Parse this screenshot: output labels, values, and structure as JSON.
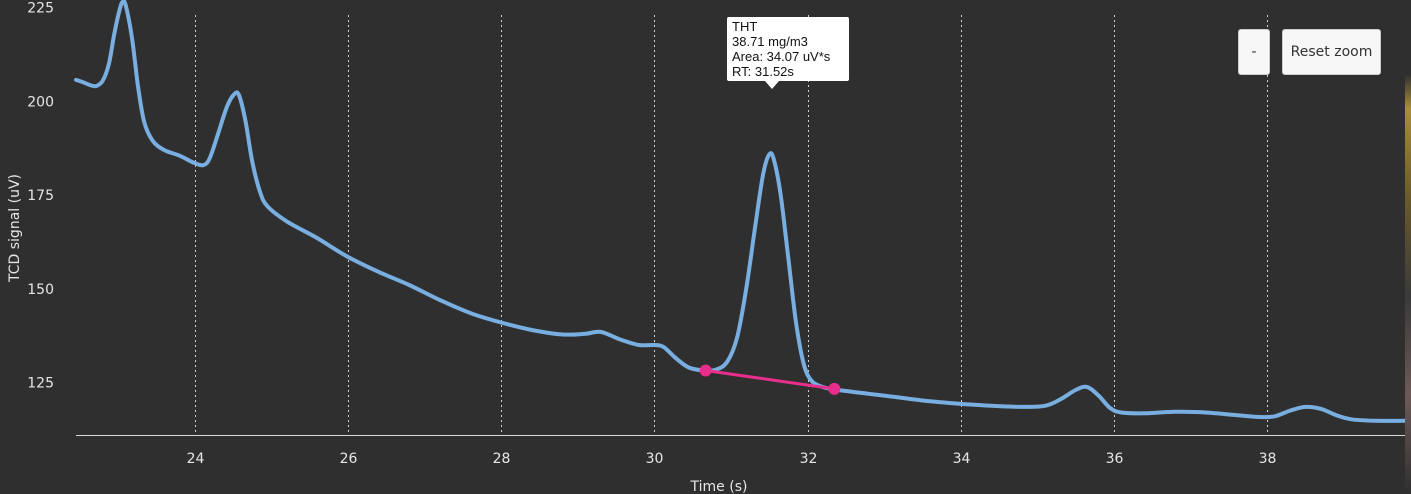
{
  "chart_data": {
    "type": "line",
    "xlabel": "Time (s)",
    "ylabel": "TCD signal (uV)",
    "xlim": [
      22.45,
      39.8
    ],
    "ylim": [
      111,
      227
    ],
    "x_ticks": [
      24,
      26,
      28,
      30,
      32,
      34,
      36,
      38
    ],
    "y_ticks": [
      125,
      150,
      175,
      200,
      225
    ],
    "x_grid": true,
    "series": [
      {
        "color": "#78aee0",
        "points": [
          [
            22.45,
            205.7
          ],
          [
            22.55,
            205.0
          ],
          [
            22.65,
            204.2
          ],
          [
            22.72,
            204.1
          ],
          [
            22.8,
            205.5
          ],
          [
            22.88,
            210.0
          ],
          [
            22.95,
            218.0
          ],
          [
            23.02,
            224.5
          ],
          [
            23.06,
            226.5
          ],
          [
            23.1,
            225.5
          ],
          [
            23.18,
            217.0
          ],
          [
            23.26,
            204.0
          ],
          [
            23.34,
            194.5
          ],
          [
            23.45,
            189.5
          ],
          [
            23.6,
            187.0
          ],
          [
            23.8,
            185.5
          ],
          [
            24.0,
            183.5
          ],
          [
            24.12,
            183.0
          ],
          [
            24.2,
            185.0
          ],
          [
            24.3,
            191.0
          ],
          [
            24.42,
            198.5
          ],
          [
            24.52,
            202.0
          ],
          [
            24.58,
            201.5
          ],
          [
            24.66,
            195.0
          ],
          [
            24.75,
            184.0
          ],
          [
            24.85,
            176.0
          ],
          [
            24.95,
            172.0
          ],
          [
            25.2,
            168.0
          ],
          [
            25.6,
            163.5
          ],
          [
            26.0,
            158.5
          ],
          [
            26.4,
            154.5
          ],
          [
            26.8,
            151.0
          ],
          [
            27.2,
            147.0
          ],
          [
            27.6,
            143.5
          ],
          [
            28.0,
            141.0
          ],
          [
            28.4,
            139.0
          ],
          [
            28.8,
            137.8
          ],
          [
            29.1,
            138.0
          ],
          [
            29.3,
            138.5
          ],
          [
            29.55,
            136.5
          ],
          [
            29.8,
            135.0
          ],
          [
            30.0,
            135.0
          ],
          [
            30.12,
            134.5
          ],
          [
            30.28,
            131.5
          ],
          [
            30.45,
            129.0
          ],
          [
            30.65,
            128.2
          ],
          [
            30.8,
            128.4
          ],
          [
            30.95,
            130.5
          ],
          [
            31.08,
            137.0
          ],
          [
            31.2,
            150.0
          ],
          [
            31.32,
            167.0
          ],
          [
            31.42,
            180.5
          ],
          [
            31.5,
            185.8
          ],
          [
            31.56,
            184.5
          ],
          [
            31.65,
            175.0
          ],
          [
            31.75,
            158.0
          ],
          [
            31.85,
            141.0
          ],
          [
            31.95,
            130.0
          ],
          [
            32.05,
            125.5
          ],
          [
            32.2,
            123.8
          ],
          [
            32.4,
            123.0
          ],
          [
            32.8,
            122.0
          ],
          [
            33.2,
            121.0
          ],
          [
            33.6,
            120.0
          ],
          [
            34.0,
            119.3
          ],
          [
            34.4,
            118.8
          ],
          [
            34.8,
            118.5
          ],
          [
            35.1,
            118.8
          ],
          [
            35.3,
            120.5
          ],
          [
            35.5,
            123.0
          ],
          [
            35.65,
            123.8
          ],
          [
            35.8,
            121.5
          ],
          [
            35.95,
            118.2
          ],
          [
            36.1,
            117.0
          ],
          [
            36.4,
            116.8
          ],
          [
            36.8,
            117.2
          ],
          [
            37.2,
            117.0
          ],
          [
            37.6,
            116.3
          ],
          [
            37.9,
            115.8
          ],
          [
            38.1,
            116.0
          ],
          [
            38.3,
            117.5
          ],
          [
            38.5,
            118.5
          ],
          [
            38.7,
            118.0
          ],
          [
            38.9,
            116.3
          ],
          [
            39.1,
            115.2
          ],
          [
            39.4,
            114.8
          ],
          [
            39.8,
            114.8
          ]
        ]
      }
    ],
    "baseline": {
      "color": "#e62e8a",
      "start": [
        30.67,
        128.2
      ],
      "end": [
        32.35,
        123.3
      ]
    }
  },
  "tooltip": {
    "line1": "THT",
    "line2": "38.71 mg/m3",
    "line3": "Area: 34.07 uV*s",
    "line4": "RT: 31.52s"
  },
  "toolbar": {
    "minus_label": "-",
    "reset_label": "Reset zoom"
  }
}
